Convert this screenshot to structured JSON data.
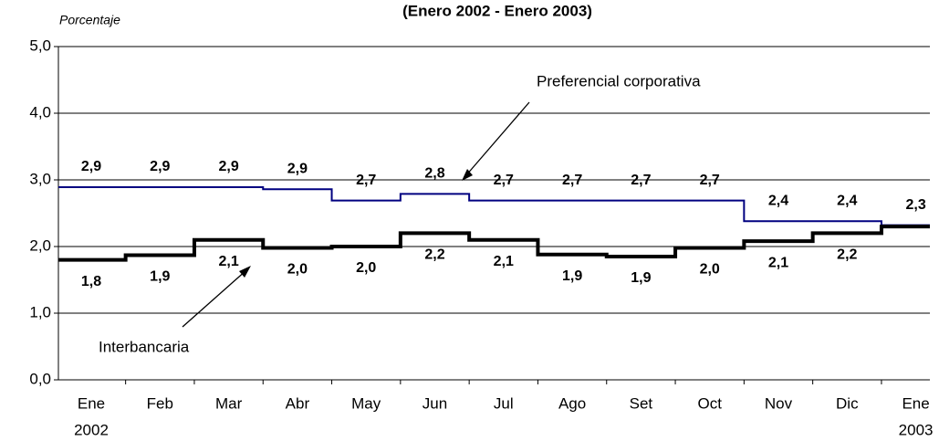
{
  "chart_data": {
    "type": "step-line",
    "title": "(Enero 2002 - Enero 2003)",
    "y_label": "Porcentaje",
    "categories": [
      "Ene",
      "Feb",
      "Mar",
      "Abr",
      "May",
      "Jun",
      "Jul",
      "Ago",
      "Set",
      "Oct",
      "Nov",
      "Dic",
      "Ene"
    ],
    "category_years": [
      "2002",
      null,
      null,
      null,
      null,
      null,
      null,
      null,
      null,
      null,
      null,
      null,
      "2003"
    ],
    "ylim": [
      0,
      5
    ],
    "yticks": [
      {
        "value": 0,
        "label": "0,0"
      },
      {
        "value": 1,
        "label": "1,0"
      },
      {
        "value": 2,
        "label": "2,0"
      },
      {
        "value": 3,
        "label": "3,0"
      },
      {
        "value": 4,
        "label": "4,0"
      },
      {
        "value": 5,
        "label": "5,0"
      }
    ],
    "grid": true,
    "series": [
      {
        "name": "Preferencial corporativa",
        "color": "#000080",
        "values": [
          2.89,
          2.89,
          2.89,
          2.86,
          2.69,
          2.79,
          2.69,
          2.69,
          2.69,
          2.69,
          2.38,
          2.38,
          2.32
        ],
        "value_labels": [
          "2,9",
          "2,9",
          "2,9",
          "2,9",
          "2,7",
          "2,8",
          "2,7",
          "2,7",
          "2,7",
          "2,7",
          "2,4",
          "2,4",
          "2,3"
        ]
      },
      {
        "name": "Interbancaria",
        "color": "#000000",
        "values": [
          1.8,
          1.87,
          2.1,
          1.98,
          2.0,
          2.2,
          2.1,
          1.88,
          1.85,
          1.98,
          2.08,
          2.2,
          2.3
        ],
        "value_labels": [
          "1,8",
          "1,9",
          "2,1",
          "2,0",
          "2,0",
          "2,2",
          "2,1",
          "1,9",
          "1,9",
          "2,0",
          "2,1",
          "2,2",
          null
        ]
      }
    ]
  }
}
